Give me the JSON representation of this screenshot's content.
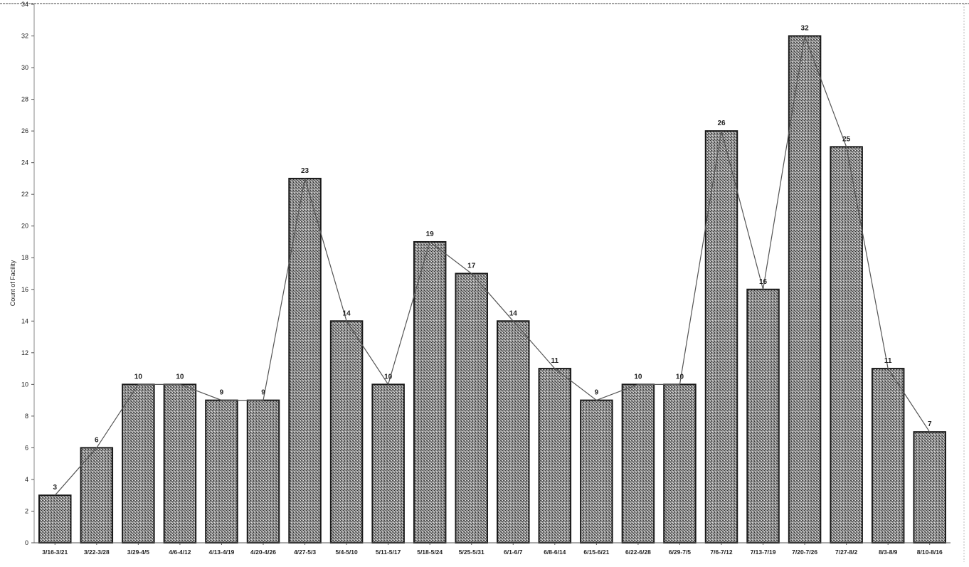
{
  "chart_data": {
    "type": "bar",
    "ylabel": "Count of Facility",
    "xlabel": "",
    "title": "",
    "ylim": [
      0,
      34
    ],
    "yticks": [
      0,
      2,
      4,
      6,
      8,
      10,
      12,
      14,
      16,
      18,
      20,
      22,
      24,
      26,
      28,
      30,
      32,
      34
    ],
    "grid": false,
    "legend": "none",
    "overlay_line": true,
    "categories": [
      "3/16-3/21",
      "3/22-3/28",
      "3/29-4/5",
      "4/6-4/12",
      "4/13-4/19",
      "4/20-4/26",
      "4/27-5/3",
      "5/4-5/10",
      "5/11-5/17",
      "5/18-5/24",
      "5/25-5/31",
      "6/1-6/7",
      "6/8-6/14",
      "6/15-6/21",
      "6/22-6/28",
      "6/29-7/5",
      "7/6-7/12",
      "7/13-7/19",
      "7/20-7/26",
      "7/27-8/2",
      "8/3-8/9",
      "8/10-8/16"
    ],
    "values": [
      3,
      6,
      10,
      10,
      9,
      9,
      23,
      14,
      10,
      19,
      17,
      14,
      11,
      9,
      10,
      10,
      26,
      16,
      32,
      25,
      11,
      7
    ],
    "colors": {
      "bar_fill": "#8a8a8a",
      "bar_stroke": "#1a1a1a",
      "line": "#555555"
    }
  }
}
